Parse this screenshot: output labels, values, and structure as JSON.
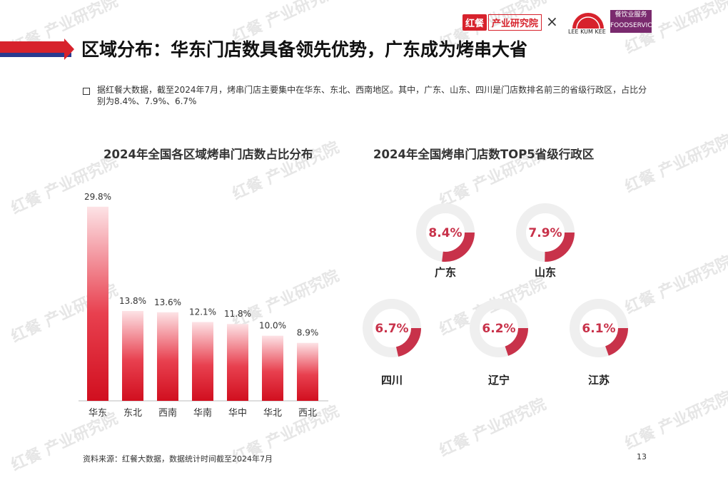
{
  "header": {
    "title": "区域分布：华东门店数具备领先优势，广东成为烤串大省",
    "brand_part1": "红餐",
    "brand_part2": "产业研究院",
    "cross": "×",
    "partner_name": "LEE KUM KEE",
    "partner_badge_line1": "餐饮业服务",
    "partner_badge_line2": "FOODSERVICE"
  },
  "description": "据红餐大数据，截至2024年7月，烤串门店主要集中在华东、东北、西南地区。其中，广东、山东、四川是门店数排名前三的省级行政区，占比分别为8.4%、7.9%、6.7%",
  "footer": {
    "source": "资料来源：红餐大数据，数据统计时间截至2024年7月",
    "page_number": "13"
  },
  "colors": {
    "accent_red": "#d7222c",
    "donut_track": "#efefef",
    "donut_arc": "#c8324a",
    "label_red": "#c8324a"
  },
  "chart_data": [
    {
      "type": "bar",
      "title": "2024年全国各区域烤串门店数占比分布",
      "categories": [
        "华东",
        "东北",
        "西南",
        "华南",
        "华中",
        "华北",
        "西北"
      ],
      "values": [
        29.8,
        13.8,
        13.6,
        12.1,
        11.8,
        10.0,
        8.9
      ],
      "value_labels": [
        "29.8%",
        "13.8%",
        "13.6%",
        "12.1%",
        "11.8%",
        "10.0%",
        "8.9%"
      ],
      "unit": "%",
      "ylim": [
        0,
        30
      ],
      "grid": false
    },
    {
      "type": "pie",
      "title": "2024年全国烤串门店数TOP5省级行政区",
      "categories": [
        "广东",
        "山东",
        "四川",
        "辽宁",
        "江苏"
      ],
      "values": [
        8.4,
        7.9,
        6.7,
        6.2,
        6.1
      ],
      "value_labels": [
        "8.4%",
        "7.9%",
        "6.7%",
        "6.2%",
        "6.1%"
      ],
      "unit": "%"
    }
  ]
}
